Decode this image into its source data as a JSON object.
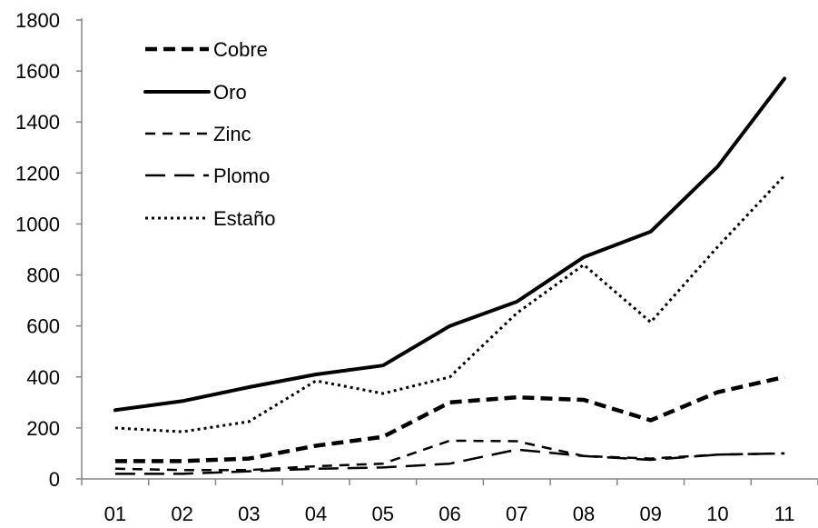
{
  "chart_data": {
    "type": "line",
    "x": [
      "01",
      "02",
      "03",
      "04",
      "05",
      "06",
      "07",
      "08",
      "09",
      "10",
      "11"
    ],
    "ylim": [
      0,
      1800
    ],
    "yticks": [
      "0",
      "200",
      "400",
      "600",
      "800",
      "1000",
      "1200",
      "1400",
      "1600",
      "1800"
    ],
    "grid": false,
    "legend_position": "top-left",
    "series": [
      {
        "name": "Cobre",
        "style": "heavy-dash",
        "values": [
          70,
          70,
          80,
          130,
          165,
          300,
          320,
          310,
          230,
          340,
          400
        ]
      },
      {
        "name": "Oro",
        "style": "solid",
        "values": [
          270,
          305,
          360,
          410,
          445,
          600,
          695,
          870,
          970,
          1225,
          1570
        ]
      },
      {
        "name": "Zinc",
        "style": "thin-dash",
        "values": [
          40,
          35,
          35,
          50,
          60,
          150,
          148,
          90,
          80,
          95,
          100
        ]
      },
      {
        "name": "Plomo",
        "style": "long-dash",
        "values": [
          20,
          20,
          30,
          40,
          45,
          60,
          115,
          90,
          75,
          95,
          100
        ]
      },
      {
        "name": "Estaño",
        "style": "dotted",
        "values": [
          200,
          185,
          225,
          385,
          335,
          400,
          650,
          840,
          615,
          910,
          1190
        ]
      }
    ],
    "colors": {
      "line": "#000000",
      "axis": "#868686",
      "background": "#ffffff"
    }
  }
}
